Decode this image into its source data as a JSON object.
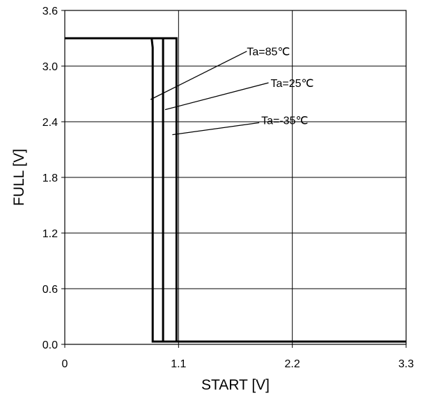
{
  "chart_data": {
    "type": "line",
    "title": "",
    "xlabel": "START [V]",
    "ylabel": "FULL  [V]",
    "xlim": [
      0,
      3.3
    ],
    "ylim": [
      0,
      3.6
    ],
    "xticks": [
      "0",
      "1.1",
      "2.2",
      "3.3"
    ],
    "yticks": [
      "0.0",
      "0.6",
      "1.2",
      "1.8",
      "2.4",
      "3.0",
      "3.6"
    ],
    "grid": true,
    "series": [
      {
        "name": "Ta=85℃",
        "x": [
          0,
          0.84,
          0.85,
          0.85,
          3.3
        ],
        "y": [
          3.3,
          3.3,
          3.2,
          0.03,
          0.03
        ]
      },
      {
        "name": "Ta=25℃",
        "x": [
          0,
          0.95,
          0.95,
          3.3
        ],
        "y": [
          3.3,
          3.3,
          0.03,
          0.03
        ]
      },
      {
        "name": "Ta=-35℃",
        "x": [
          0,
          1.08,
          1.08,
          3.3
        ],
        "y": [
          3.3,
          3.3,
          0.03,
          0.03
        ]
      }
    ],
    "annotations": [
      {
        "text": "Ta=85℃",
        "label_x": 1.76,
        "label_y": 3.16,
        "line_from": [
          1.76,
          3.16
        ],
        "line_to": [
          0.83,
          2.64
        ]
      },
      {
        "text": "Ta=25℃",
        "label_x": 1.99,
        "label_y": 2.82,
        "line_from": [
          1.97,
          2.82
        ],
        "line_to": [
          0.97,
          2.53
        ]
      },
      {
        "text": "Ta=-35℃",
        "label_x": 1.9,
        "label_y": 2.42,
        "line_from": [
          1.88,
          2.39
        ],
        "line_to": [
          1.04,
          2.26
        ]
      }
    ]
  }
}
